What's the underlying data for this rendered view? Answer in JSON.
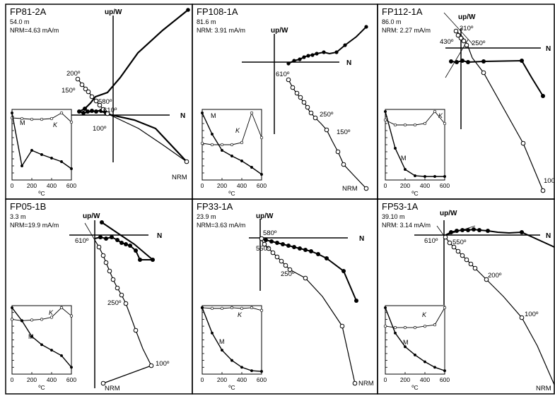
{
  "figure": {
    "panels": [
      {
        "id": "p1",
        "title": "FP81-2A",
        "depth": "54.0 m",
        "nrm": "NRM=4.63 mA/m"
      },
      {
        "id": "p2",
        "title": "FP108-1A",
        "depth": "81.6 m",
        "nrm": "NRM: 3.91 mA/m"
      },
      {
        "id": "p3",
        "title": "FP112-1A",
        "depth": "86.0 m",
        "nrm": "NRM: 2.27 mA/m"
      },
      {
        "id": "p4",
        "title": "FP05-1B",
        "depth": "3.3 m",
        "nrm": "NRM=19.9 mA/m"
      },
      {
        "id": "p5",
        "title": "FP33-1A",
        "depth": "23.9 m",
        "nrm": "NRM=3.63 mA/m"
      },
      {
        "id": "p6",
        "title": "FP53-1A",
        "depth": "39.10 m",
        "nrm": "NRM: 3.14 mA/m"
      }
    ]
  },
  "chart_data": [
    {
      "type": "line",
      "kind": "orthogonal-vector-plot",
      "title": "FP81-2A",
      "axis_labels": {
        "up": "up/W",
        "north": "N"
      },
      "horizontal_projection": "closed circles",
      "vertical_projection": "open circles",
      "step_labels": [
        "200º",
        "150º",
        "580º",
        "610º",
        "100º",
        "NRM"
      ],
      "inset": {
        "type": "line",
        "x": [
          0,
          100,
          200,
          300,
          400,
          500,
          600
        ],
        "xticks": [
          "0",
          "200",
          "400",
          "600"
        ],
        "xlabel": "ºC",
        "series": [
          {
            "name": "K",
            "y": [
              0.88,
              0.87,
              0.86,
              0.86,
              0.87,
              0.95,
              0.82
            ]
          },
          {
            "name": "M",
            "y": [
              0.95,
              0.2,
              0.42,
              0.36,
              0.31,
              0.26,
              0.16
            ]
          }
        ]
      }
    },
    {
      "type": "line",
      "kind": "orthogonal-vector-plot",
      "title": "FP108-1A",
      "axis_labels": {
        "up": "up/W",
        "north": "N"
      },
      "horizontal_projection": "closed circles",
      "vertical_projection": "open circles",
      "step_labels": [
        "610º",
        "250º",
        "150º",
        "NRM"
      ],
      "inset": {
        "type": "line",
        "x": [
          0,
          100,
          200,
          300,
          400,
          500,
          600
        ],
        "xticks": [
          "0",
          "200",
          "400",
          "600"
        ],
        "xlabel": "ºC",
        "series": [
          {
            "name": "K",
            "y": [
              0.52,
              0.5,
              0.5,
              0.5,
              0.53,
              0.95,
              0.6
            ]
          },
          {
            "name": "M",
            "y": [
              0.95,
              0.65,
              0.42,
              0.34,
              0.27,
              0.18,
              0.08
            ]
          }
        ]
      }
    },
    {
      "type": "line",
      "kind": "orthogonal-vector-plot",
      "title": "FP112-1A",
      "axis_labels": {
        "up": "up/W",
        "north": "N"
      },
      "horizontal_projection": "closed circles",
      "vertical_projection": "open circles",
      "step_labels": [
        "310º",
        "430º",
        "250º",
        "100"
      ],
      "inset": {
        "type": "line",
        "x": [
          0,
          100,
          200,
          300,
          400,
          500,
          600
        ],
        "xticks": [
          "0",
          "200",
          "400",
          "600"
        ],
        "xlabel": "ºC",
        "series": [
          {
            "name": "K",
            "y": [
              0.85,
              0.78,
              0.78,
              0.78,
              0.8,
              0.97,
              0.8
            ]
          },
          {
            "name": "M",
            "y": [
              0.97,
              0.45,
              0.15,
              0.06,
              0.05,
              0.05,
              0.05
            ]
          }
        ]
      }
    },
    {
      "type": "line",
      "kind": "orthogonal-vector-plot",
      "title": "FP05-1B",
      "axis_labels": {
        "up": "up/W",
        "north": "N"
      },
      "horizontal_projection": "closed circles",
      "vertical_projection": "open circles",
      "step_labels": [
        "610º",
        "250º",
        "100º",
        "NRM"
      ],
      "inset": {
        "type": "line",
        "x": [
          0,
          100,
          200,
          300,
          400,
          500,
          600
        ],
        "xticks": [
          "0",
          "200",
          "400",
          "600"
        ],
        "xlabel": "ºC",
        "series": [
          {
            "name": "K",
            "y": [
              0.8,
              0.78,
              0.79,
              0.8,
              0.83,
              0.97,
              0.85
            ]
          },
          {
            "name": "M",
            "y": [
              0.97,
              0.78,
              0.55,
              0.43,
              0.35,
              0.27,
              0.1
            ]
          }
        ]
      }
    },
    {
      "type": "line",
      "kind": "orthogonal-vector-plot",
      "title": "FP33-1A",
      "axis_labels": {
        "up": "up/W",
        "north": "N"
      },
      "horizontal_projection": "closed circles",
      "vertical_projection": "open circles",
      "step_labels": [
        "580º",
        "550º",
        "250º",
        "NRM"
      ],
      "inset": {
        "type": "line",
        "x": [
          0,
          100,
          200,
          300,
          400,
          500,
          600
        ],
        "xticks": [
          "0",
          "200",
          "400",
          "600"
        ],
        "xlabel": "ºC",
        "series": [
          {
            "name": "K",
            "y": [
              0.97,
              0.96,
              0.96,
              0.97,
              0.96,
              0.97,
              0.93
            ]
          },
          {
            "name": "M",
            "y": [
              0.97,
              0.6,
              0.35,
              0.2,
              0.1,
              0.05,
              0.04
            ]
          }
        ]
      }
    },
    {
      "type": "line",
      "kind": "orthogonal-vector-plot",
      "title": "FP53-1A",
      "axis_labels": {
        "up": "up/W",
        "north": "N"
      },
      "horizontal_projection": "closed circles",
      "vertical_projection": "open circles",
      "step_labels": [
        "610º",
        "550º",
        "200º",
        "100º",
        "NRM"
      ],
      "inset": {
        "type": "line",
        "x": [
          0,
          100,
          200,
          300,
          400,
          500,
          600
        ],
        "xticks": [
          "0",
          "200",
          "400",
          "600"
        ],
        "xlabel": "ºC",
        "series": [
          {
            "name": "K",
            "y": [
              0.7,
              0.68,
              0.68,
              0.68,
              0.7,
              0.72,
              0.97
            ]
          },
          {
            "name": "M",
            "y": [
              0.97,
              0.6,
              0.4,
              0.28,
              0.18,
              0.1,
              0.05
            ]
          }
        ]
      }
    }
  ]
}
